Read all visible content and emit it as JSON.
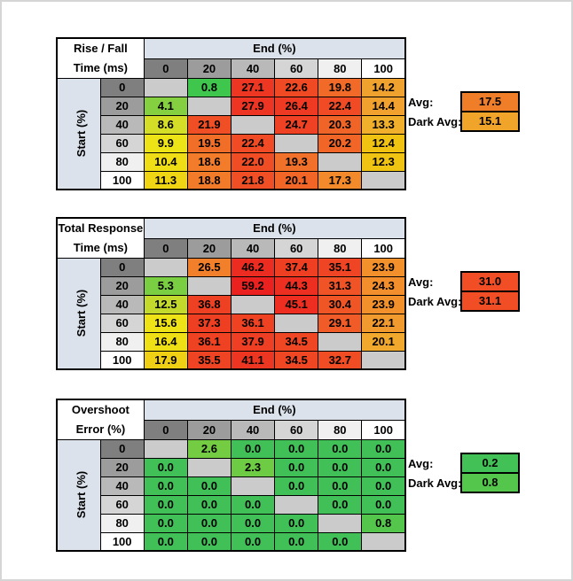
{
  "palette": {
    "band_blue": "#DBE2EB",
    "blank_cell": "#CBCBCB",
    "header_grays": [
      "#7F7F7F",
      "#9C9C9C",
      "#B9B9B9",
      "#D5D5D5",
      "#F0F0F0",
      "#FFFFFF"
    ],
    "border": "#000000",
    "page_border": "#D5D5D5"
  },
  "avg_label": "Avg:",
  "dark_avg_label": "Dark Avg:",
  "tables": [
    {
      "title_line1": "Rise / Fall",
      "title_line2": "Time (ms)",
      "col_group_label": "End (%)",
      "row_group_label": "Start (%)",
      "col_headers": [
        "0",
        "20",
        "40",
        "60",
        "80",
        "100"
      ],
      "row_headers": [
        "0",
        "20",
        "40",
        "60",
        "80",
        "100"
      ],
      "cells": [
        [
          {
            "v": "",
            "c": "#CBCBCB"
          },
          {
            "v": "0.8",
            "c": "#3FC64D"
          },
          {
            "v": "27.1",
            "c": "#EE3722"
          },
          {
            "v": "22.6",
            "c": "#F04A24"
          },
          {
            "v": "19.8",
            "c": "#F16A28"
          },
          {
            "v": "14.2",
            "c": "#F0A22E"
          }
        ],
        [
          {
            "v": "4.1",
            "c": "#85D040"
          },
          {
            "v": "",
            "c": "#CBCBCB"
          },
          {
            "v": "27.9",
            "c": "#EE3422"
          },
          {
            "v": "26.4",
            "c": "#EE3A22"
          },
          {
            "v": "22.4",
            "c": "#F04B24"
          },
          {
            "v": "14.4",
            "c": "#F0A12E"
          }
        ],
        [
          {
            "v": "8.6",
            "c": "#D5DE27"
          },
          {
            "v": "21.9",
            "c": "#F04E25"
          },
          {
            "v": "",
            "c": "#CBCBCB"
          },
          {
            "v": "24.7",
            "c": "#EF4123"
          },
          {
            "v": "20.3",
            "c": "#F16427"
          },
          {
            "v": "13.3",
            "c": "#F0B02C"
          }
        ],
        [
          {
            "v": "9.9",
            "c": "#EDE417"
          },
          {
            "v": "19.5",
            "c": "#F16E29"
          },
          {
            "v": "22.4",
            "c": "#F04B24"
          },
          {
            "v": "",
            "c": "#CBCBCB"
          },
          {
            "v": "20.2",
            "c": "#F16527"
          },
          {
            "v": "12.4",
            "c": "#F0C313"
          }
        ],
        [
          {
            "v": "10.4",
            "c": "#EFDE15"
          },
          {
            "v": "18.6",
            "c": "#F27C2A"
          },
          {
            "v": "22.0",
            "c": "#F04D25"
          },
          {
            "v": "19.3",
            "c": "#F1702A"
          },
          {
            "v": "",
            "c": "#CBCBCB"
          },
          {
            "v": "12.3",
            "c": "#F0C413"
          }
        ],
        [
          {
            "v": "11.3",
            "c": "#EFD514"
          },
          {
            "v": "18.8",
            "c": "#F27B2A"
          },
          {
            "v": "21.8",
            "c": "#F04E25"
          },
          {
            "v": "20.1",
            "c": "#F16627"
          },
          {
            "v": "17.3",
            "c": "#F28A2B"
          },
          {
            "v": "",
            "c": "#CBCBCB"
          }
        ]
      ],
      "avg": {
        "value": "17.5",
        "color": "#F07D28"
      },
      "dark_avg": {
        "value": "15.1",
        "color": "#F0A429"
      }
    },
    {
      "title_line1": "Total Response",
      "title_line2": "Time (ms)",
      "col_group_label": "End (%)",
      "row_group_label": "Start (%)",
      "col_headers": [
        "0",
        "20",
        "40",
        "60",
        "80",
        "100"
      ],
      "row_headers": [
        "0",
        "20",
        "40",
        "60",
        "80",
        "100"
      ],
      "cells": [
        [
          {
            "v": "",
            "c": "#CBCBCB"
          },
          {
            "v": "26.5",
            "c": "#F2802B"
          },
          {
            "v": "46.2",
            "c": "#EC2C21"
          },
          {
            "v": "37.4",
            "c": "#EE3F23"
          },
          {
            "v": "35.1",
            "c": "#EF4524"
          },
          {
            "v": "23.9",
            "c": "#F2902C"
          }
        ],
        [
          {
            "v": "5.3",
            "c": "#7ACE41"
          },
          {
            "v": "",
            "c": "#CBCBCB"
          },
          {
            "v": "59.2",
            "c": "#EB2120"
          },
          {
            "v": "44.3",
            "c": "#ED2F21"
          },
          {
            "v": "31.3",
            "c": "#F05326"
          },
          {
            "v": "24.3",
            "c": "#F28E2C"
          }
        ],
        [
          {
            "v": "12.5",
            "c": "#C3DA2C"
          },
          {
            "v": "36.8",
            "c": "#EE4023"
          },
          {
            "v": "",
            "c": "#CBCBCB"
          },
          {
            "v": "45.1",
            "c": "#ED2E21"
          },
          {
            "v": "30.4",
            "c": "#F05526"
          },
          {
            "v": "23.9",
            "c": "#F2902C"
          }
        ],
        [
          {
            "v": "15.6",
            "c": "#EEE316"
          },
          {
            "v": "37.3",
            "c": "#EE3F23"
          },
          {
            "v": "36.1",
            "c": "#EF4223"
          },
          {
            "v": "",
            "c": "#CBCBCB"
          },
          {
            "v": "29.1",
            "c": "#F15B27"
          },
          {
            "v": "22.1",
            "c": "#F19A2E"
          }
        ],
        [
          {
            "v": "16.4",
            "c": "#EFDF15"
          },
          {
            "v": "36.1",
            "c": "#EF4223"
          },
          {
            "v": "37.9",
            "c": "#EE3E23"
          },
          {
            "v": "34.5",
            "c": "#EF4724"
          },
          {
            "v": "",
            "c": "#CBCBCB"
          },
          {
            "v": "20.1",
            "c": "#F0A92D"
          }
        ],
        [
          {
            "v": "17.9",
            "c": "#EFD014"
          },
          {
            "v": "35.5",
            "c": "#EF4424"
          },
          {
            "v": "41.1",
            "c": "#ED3622"
          },
          {
            "v": "34.5",
            "c": "#EF4724"
          },
          {
            "v": "32.7",
            "c": "#F04D25"
          },
          {
            "v": "",
            "c": "#CBCBCB"
          }
        ]
      ],
      "avg": {
        "value": "31.0",
        "color": "#F14E25"
      },
      "dark_avg": {
        "value": "31.1",
        "color": "#F14E25"
      }
    },
    {
      "title_line1": "Overshoot",
      "title_line2": "Error (%)",
      "col_group_label": "End (%)",
      "row_group_label": "Start (%)",
      "col_headers": [
        "0",
        "20",
        "40",
        "60",
        "80",
        "100"
      ],
      "row_headers": [
        "0",
        "20",
        "40",
        "60",
        "80",
        "100"
      ],
      "cells": [
        [
          {
            "v": "",
            "c": "#CBCBCB"
          },
          {
            "v": "2.6",
            "c": "#73CC42"
          },
          {
            "v": "0.0",
            "c": "#40C057"
          },
          {
            "v": "0.0",
            "c": "#40C057"
          },
          {
            "v": "0.0",
            "c": "#40C057"
          },
          {
            "v": "0.0",
            "c": "#40C057"
          }
        ],
        [
          {
            "v": "0.0",
            "c": "#40C057"
          },
          {
            "v": "",
            "c": "#CBCBCB"
          },
          {
            "v": "2.3",
            "c": "#6ECB44"
          },
          {
            "v": "0.0",
            "c": "#40C057"
          },
          {
            "v": "0.0",
            "c": "#40C057"
          },
          {
            "v": "0.0",
            "c": "#40C057"
          }
        ],
        [
          {
            "v": "0.0",
            "c": "#40C057"
          },
          {
            "v": "0.0",
            "c": "#40C057"
          },
          {
            "v": "",
            "c": "#CBCBCB"
          },
          {
            "v": "0.0",
            "c": "#40C057"
          },
          {
            "v": "0.0",
            "c": "#40C057"
          },
          {
            "v": "0.0",
            "c": "#40C057"
          }
        ],
        [
          {
            "v": "0.0",
            "c": "#40C057"
          },
          {
            "v": "0.0",
            "c": "#40C057"
          },
          {
            "v": "0.0",
            "c": "#40C057"
          },
          {
            "v": "",
            "c": "#CBCBCB"
          },
          {
            "v": "0.0",
            "c": "#40C057"
          },
          {
            "v": "0.0",
            "c": "#40C057"
          }
        ],
        [
          {
            "v": "0.0",
            "c": "#40C057"
          },
          {
            "v": "0.0",
            "c": "#40C057"
          },
          {
            "v": "0.0",
            "c": "#40C057"
          },
          {
            "v": "0.0",
            "c": "#40C057"
          },
          {
            "v": "",
            "c": "#CBCBCB"
          },
          {
            "v": "0.8",
            "c": "#55C64C"
          }
        ],
        [
          {
            "v": "0.0",
            "c": "#40C057"
          },
          {
            "v": "0.0",
            "c": "#40C057"
          },
          {
            "v": "0.0",
            "c": "#40C057"
          },
          {
            "v": "0.0",
            "c": "#40C057"
          },
          {
            "v": "0.0",
            "c": "#40C057"
          },
          {
            "v": "",
            "c": "#CBCBCB"
          }
        ]
      ],
      "avg": {
        "value": "0.2",
        "color": "#42C156"
      },
      "dark_avg": {
        "value": "0.8",
        "color": "#55C64C"
      }
    }
  ],
  "chart_data": [
    {
      "type": "heatmap",
      "title": "Rise / Fall Time (ms)",
      "xlabel": "End (%)",
      "ylabel": "Start (%)",
      "x": [
        0,
        20,
        40,
        60,
        80,
        100
      ],
      "y": [
        0,
        20,
        40,
        60,
        80,
        100
      ],
      "values": [
        [
          null,
          0.8,
          27.1,
          22.6,
          19.8,
          14.2
        ],
        [
          4.1,
          null,
          27.9,
          26.4,
          22.4,
          14.4
        ],
        [
          8.6,
          21.9,
          null,
          24.7,
          20.3,
          13.3
        ],
        [
          9.9,
          19.5,
          22.4,
          null,
          20.2,
          12.4
        ],
        [
          10.4,
          18.6,
          22.0,
          19.3,
          null,
          12.3
        ],
        [
          11.3,
          18.8,
          21.8,
          20.1,
          17.3,
          null
        ]
      ],
      "avg": 17.5,
      "dark_avg": 15.1,
      "colorscale": "green-yellow-red"
    },
    {
      "type": "heatmap",
      "title": "Total Response Time (ms)",
      "xlabel": "End (%)",
      "ylabel": "Start (%)",
      "x": [
        0,
        20,
        40,
        60,
        80,
        100
      ],
      "y": [
        0,
        20,
        40,
        60,
        80,
        100
      ],
      "values": [
        [
          null,
          26.5,
          46.2,
          37.4,
          35.1,
          23.9
        ],
        [
          5.3,
          null,
          59.2,
          44.3,
          31.3,
          24.3
        ],
        [
          12.5,
          36.8,
          null,
          45.1,
          30.4,
          23.9
        ],
        [
          15.6,
          37.3,
          36.1,
          null,
          29.1,
          22.1
        ],
        [
          16.4,
          36.1,
          37.9,
          34.5,
          null,
          20.1
        ],
        [
          17.9,
          35.5,
          41.1,
          34.5,
          32.7,
          null
        ]
      ],
      "avg": 31.0,
      "dark_avg": 31.1,
      "colorscale": "green-yellow-red"
    },
    {
      "type": "heatmap",
      "title": "Overshoot Error (%)",
      "xlabel": "End (%)",
      "ylabel": "Start (%)",
      "x": [
        0,
        20,
        40,
        60,
        80,
        100
      ],
      "y": [
        0,
        20,
        40,
        60,
        80,
        100
      ],
      "values": [
        [
          null,
          2.6,
          0.0,
          0.0,
          0.0,
          0.0
        ],
        [
          0.0,
          null,
          2.3,
          0.0,
          0.0,
          0.0
        ],
        [
          0.0,
          0.0,
          null,
          0.0,
          0.0,
          0.0
        ],
        [
          0.0,
          0.0,
          0.0,
          null,
          0.0,
          0.0
        ],
        [
          0.0,
          0.0,
          0.0,
          0.0,
          null,
          0.8
        ],
        [
          0.0,
          0.0,
          0.0,
          0.0,
          0.0,
          null
        ]
      ],
      "avg": 0.2,
      "dark_avg": 0.8,
      "colorscale": "green-yellow-red"
    }
  ]
}
